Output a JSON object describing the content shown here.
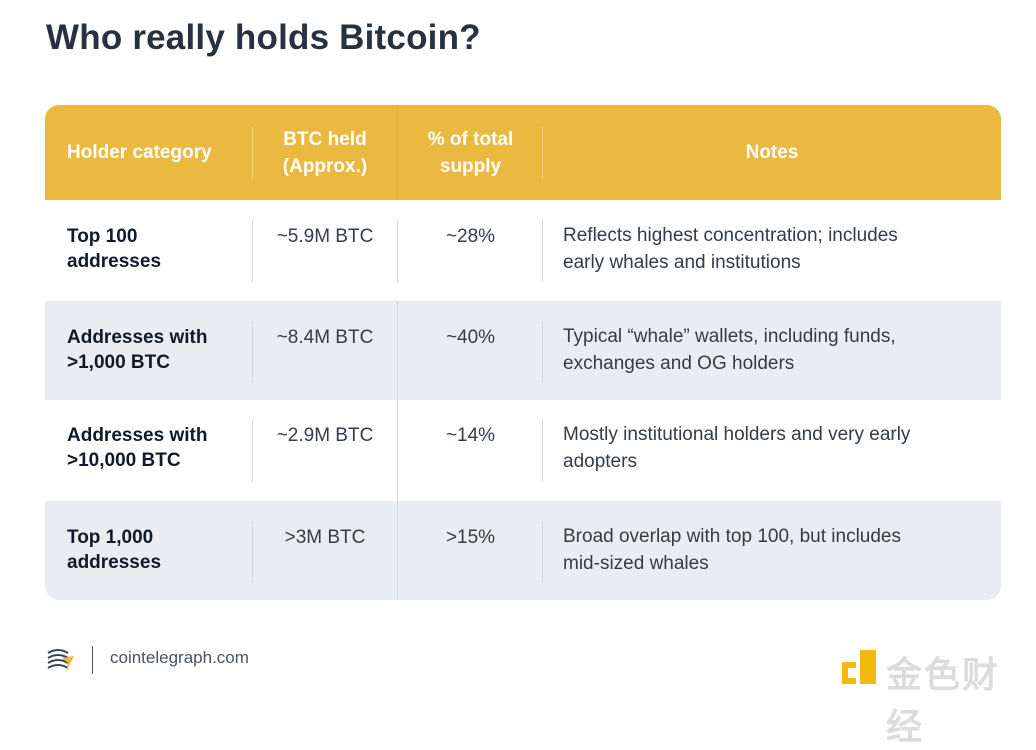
{
  "title": "Who really holds Bitcoin?",
  "colors": {
    "header": "#ebb940",
    "alt_row": "#e9edf1",
    "text": "#1c2535"
  },
  "table": {
    "headers": {
      "holder_category": "Holder category",
      "btc_held_1": "BTC held",
      "btc_held_2": "(Approx.)",
      "pct_supply_1": "% of total",
      "pct_supply_2": "supply",
      "notes": "Notes"
    },
    "rows": [
      {
        "category_1": "Top 100",
        "category_2": "addresses",
        "btc_held": "~5.9M BTC",
        "pct_supply": "~28%",
        "notes_1": "Reflects highest concentration; includes",
        "notes_2": "early whales and institutions"
      },
      {
        "category_1": "Addresses with",
        "category_2": ">1,000 BTC",
        "btc_held": "~8.4M BTC",
        "pct_supply": "~40%",
        "notes_1": "Typical “whale” wallets, including funds,",
        "notes_2": "exchanges and OG holders"
      },
      {
        "category_1": "Addresses with",
        "category_2": ">10,000 BTC",
        "btc_held": "~2.9M BTC",
        "pct_supply": "~14%",
        "notes_1": "Mostly institutional holders and very early",
        "notes_2": "adopters"
      },
      {
        "category_1": "Top 1,000",
        "category_2": "addresses",
        "btc_held": ">3M BTC",
        "pct_supply": ">15%",
        "notes_1": "Broad overlap with top 100, but includes",
        "notes_2": "mid-sized whales"
      }
    ]
  },
  "footer": {
    "logo_icon": "cointelegraph-logo-icon",
    "site": "cointelegraph.com"
  },
  "watermark": {
    "icon": "jinse-logo-icon",
    "text": "金色财经"
  }
}
